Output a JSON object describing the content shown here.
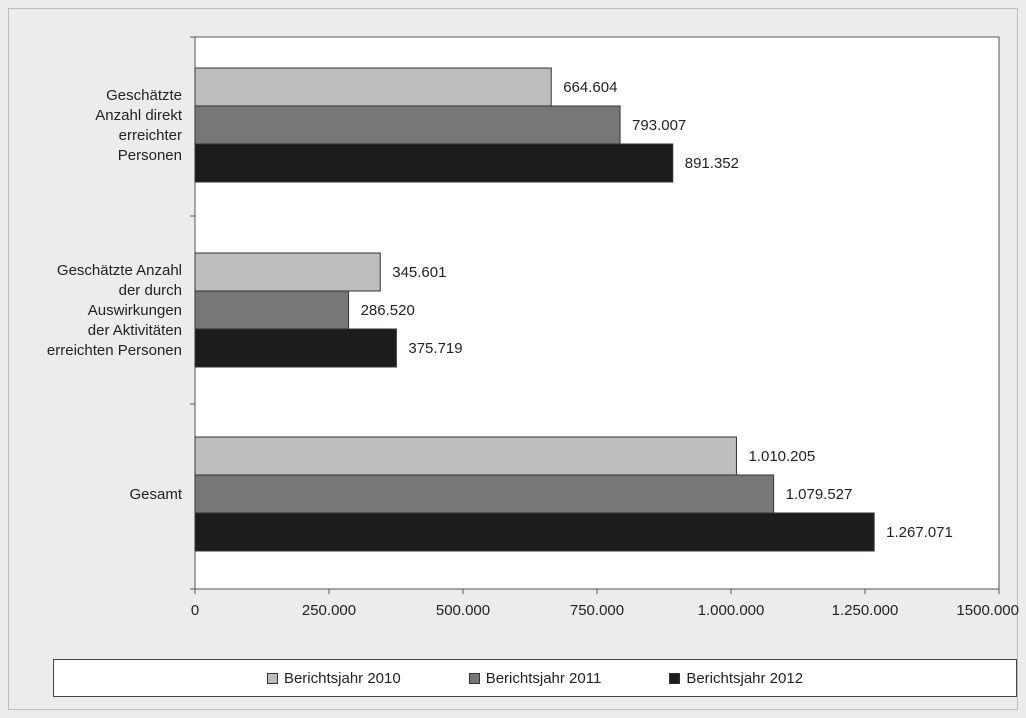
{
  "chart_data": {
    "type": "bar",
    "orientation": "horizontal",
    "categories": [
      "Geschätzte Anzahl direkt erreichter Personen",
      "Geschätzte Anzahl der durch Auswirkungen der Aktivitäten erreichten Personen",
      "Gesamt"
    ],
    "category_lines": [
      [
        "Geschätzte",
        "Anzahl direkt",
        "erreichter",
        "Personen"
      ],
      [
        "Geschätzte Anzahl",
        "der durch",
        "Auswirkungen",
        "der Aktivitäten",
        "erreichten Personen"
      ],
      [
        "Gesamt"
      ]
    ],
    "series": [
      {
        "name": "Berichtsjahr 2010",
        "color": "#bdbdbd",
        "values": [
          664604,
          345601,
          1010205
        ],
        "labels": [
          "664.604",
          "345.601",
          "1.010.205"
        ]
      },
      {
        "name": "Berichtsjahr 2011",
        "color": "#777777",
        "values": [
          793007,
          286520,
          1079527
        ],
        "labels": [
          "793.007",
          "286.520",
          "1.079.527"
        ]
      },
      {
        "name": "Berichtsjahr 2012",
        "color": "#1e1b1c",
        "values": [
          891352,
          375719,
          1267071
        ],
        "labels": [
          "891.352",
          "375.719",
          "1.267.071"
        ]
      }
    ],
    "xlim": [
      0,
      1500000
    ],
    "x_ticks": [
      0,
      250000,
      500000,
      750000,
      1000000,
      1250000,
      1500000
    ],
    "x_tick_labels": [
      "0",
      "250.000",
      "500.000",
      "750.000",
      "1.000.000",
      "1.250.000",
      "1500.000"
    ],
    "grid": false,
    "legend_position": "bottom"
  }
}
